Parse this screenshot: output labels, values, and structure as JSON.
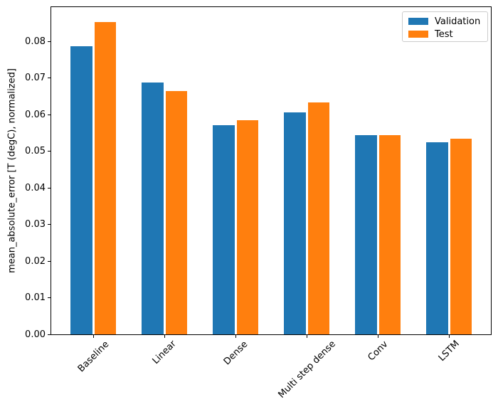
{
  "figure": {
    "background": "#ffffff"
  },
  "chart_data": {
    "type": "bar",
    "categories": [
      "Baseline",
      "Linear",
      "Dense",
      "Multi step dense",
      "Conv",
      "LSTM"
    ],
    "series": [
      {
        "name": "Validation",
        "color": "#1f77b4",
        "values": [
          0.0785,
          0.0686,
          0.0571,
          0.0606,
          0.0544,
          0.0523
        ]
      },
      {
        "name": "Test",
        "color": "#ff7f0e",
        "values": [
          0.0852,
          0.0663,
          0.0583,
          0.0633,
          0.0543,
          0.0533
        ]
      }
    ],
    "title": "",
    "xlabel": "",
    "ylabel": "mean_absolute_error [T (degC), normalized]",
    "ylim": [
      0,
      0.0896
    ],
    "yticks": [
      0.0,
      0.01,
      0.02,
      0.03,
      0.04,
      0.05,
      0.06,
      0.07,
      0.08
    ],
    "ytick_decimals": 2,
    "xtick_rotation": 45,
    "grid": false,
    "legend_position": "upper right"
  }
}
